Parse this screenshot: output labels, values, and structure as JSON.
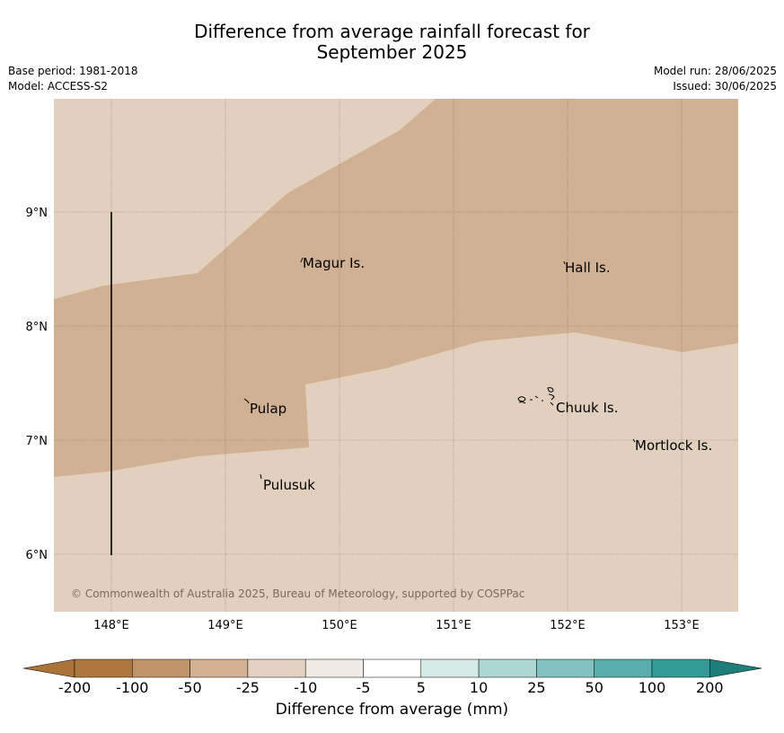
{
  "header": {
    "title_line1": "Difference from average rainfall forecast for",
    "title_line2": "September 2025",
    "base_period": "Base period: 1981-2018",
    "model": "Model: ACCESS-S2",
    "model_run": "Model run: 28/06/2025",
    "issued": "Issued: 30/06/2025"
  },
  "map": {
    "lon_labels": [
      "148°E",
      "149°E",
      "150°E",
      "151°E",
      "152°E",
      "153°E"
    ],
    "lat_labels": [
      "9°N",
      "8°N",
      "7°N",
      "6°N"
    ],
    "places": [
      "Magur Is.",
      "Hall Is.",
      "Pulap",
      "Chuuk Is.",
      "Mortlock Is.",
      "Pulusuk"
    ],
    "copyright": "© Commonwealth of Australia 2025, Bureau of Meteorology, supported by COSPPac",
    "colors": {
      "light_tan": "#e2d0bf",
      "tan": "#d1b193"
    }
  },
  "colorbar": {
    "ticks": [
      "-200",
      "-100",
      "-50",
      "-25",
      "-10",
      "-5",
      "5",
      "10",
      "25",
      "50",
      "100",
      "200"
    ],
    "colors": [
      "#ab733a",
      "#ae7840",
      "#c19467",
      "#d3b394",
      "#e4d2c0",
      "#f0ebe4",
      "#ffffff",
      "#d5ebe8",
      "#add7d3",
      "#80c3be",
      "#58aeaa",
      "#339b95",
      "#1e7f7a"
    ],
    "label": "Difference from average (mm)"
  }
}
